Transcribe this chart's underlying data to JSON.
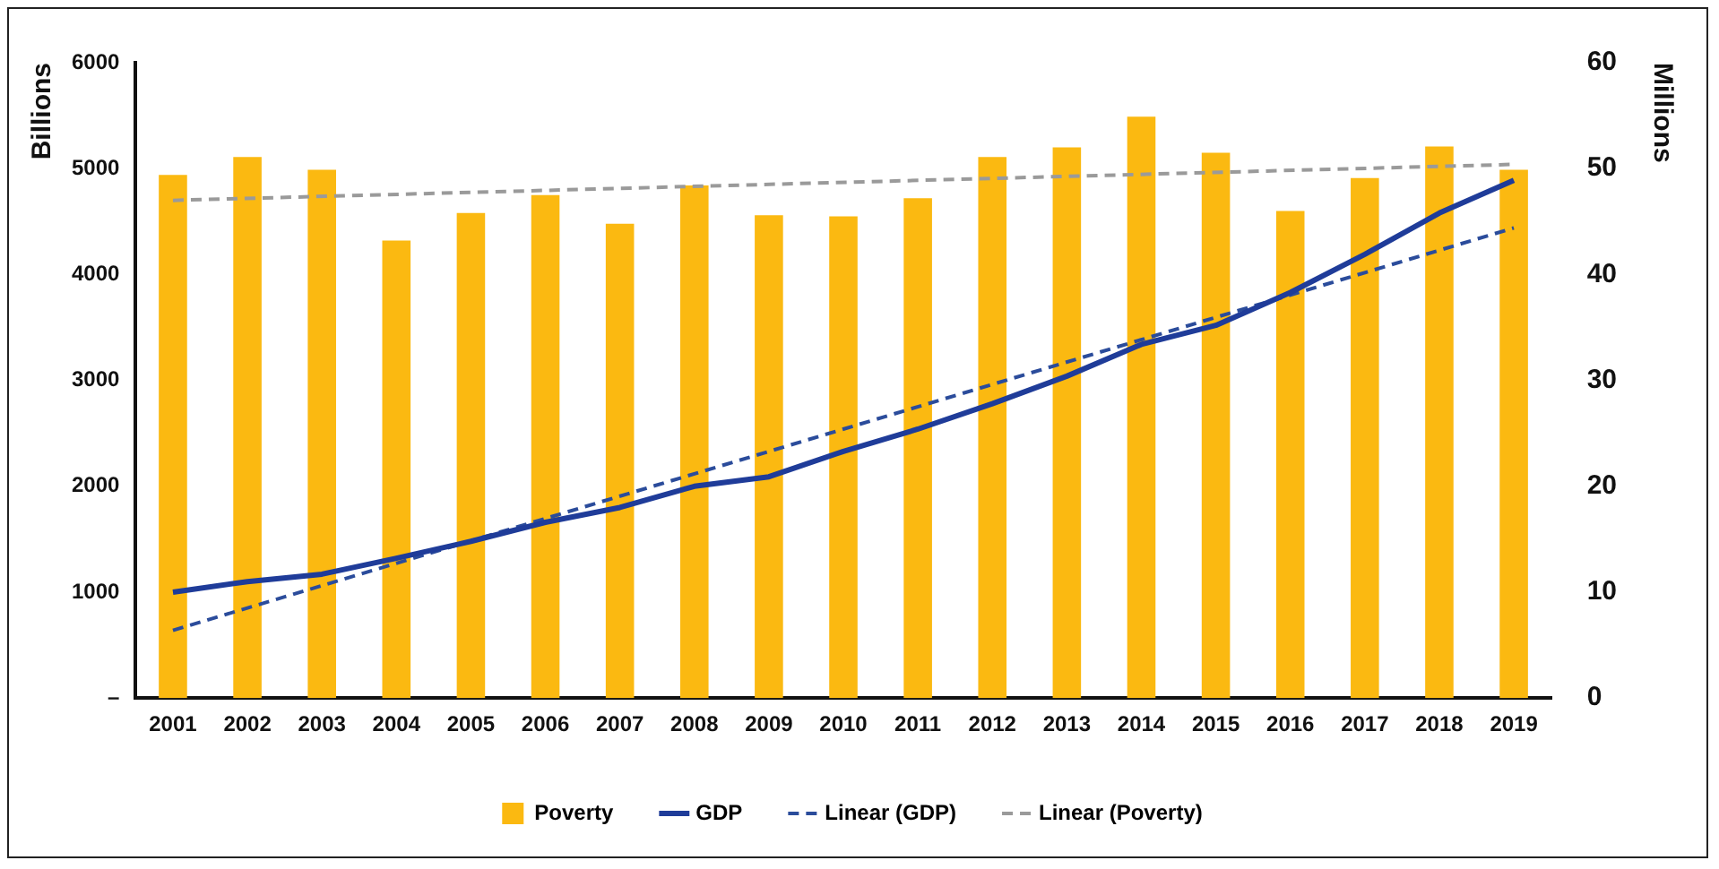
{
  "chart_data": {
    "type": "bar",
    "ylabel": "Billions",
    "y2label": "Millions",
    "categories": [
      "2001",
      "2002",
      "2003",
      "2004",
      "2005",
      "2006",
      "2007",
      "2008",
      "2009",
      "2010",
      "2011",
      "2012",
      "2013",
      "2014",
      "2015",
      "2016",
      "2017",
      "2018",
      "2019"
    ],
    "series": [
      {
        "name": "Poverty",
        "axis": "y2",
        "color": "#fbb911",
        "values": [
          49.4,
          51.1,
          49.9,
          43.2,
          45.8,
          47.5,
          44.8,
          48.4,
          45.6,
          45.5,
          47.2,
          51.1,
          52.0,
          54.9,
          51.5,
          46.0,
          49.1,
          52.1,
          49.9
        ]
      },
      {
        "name": "GDP",
        "type": "line",
        "axis": "y",
        "color": "#1f3c99",
        "line_style": "solid",
        "values": [
          1000,
          1100,
          1170,
          1320,
          1480,
          1660,
          1800,
          2000,
          2090,
          2330,
          2540,
          2780,
          3040,
          3340,
          3520,
          3830,
          4190,
          4580,
          4890
        ]
      },
      {
        "name": "Linear (GDP)",
        "type": "line",
        "axis": "y",
        "color": "#2b4c9b",
        "line_style": "dashed",
        "values": [
          640,
          null,
          null,
          null,
          null,
          null,
          null,
          null,
          null,
          null,
          null,
          null,
          null,
          null,
          null,
          null,
          null,
          null,
          4440
        ]
      },
      {
        "name": "Linear (Poverty)",
        "type": "line",
        "axis": "y2",
        "color": "#9a9a9a",
        "line_style": "dashed",
        "values": [
          47.0,
          null,
          null,
          null,
          null,
          null,
          null,
          null,
          null,
          null,
          null,
          null,
          null,
          null,
          null,
          null,
          null,
          null,
          50.4
        ]
      }
    ],
    "ylim": [
      0,
      6000
    ],
    "yticks": [
      {
        "value": 0,
        "label": "–"
      },
      1000,
      2000,
      3000,
      4000,
      5000,
      6000
    ],
    "y2lim": [
      0,
      60
    ],
    "y2ticks": [
      0,
      10,
      20,
      30,
      40,
      50,
      60
    ],
    "grid": false,
    "legend": "bottom",
    "marker": "none"
  }
}
